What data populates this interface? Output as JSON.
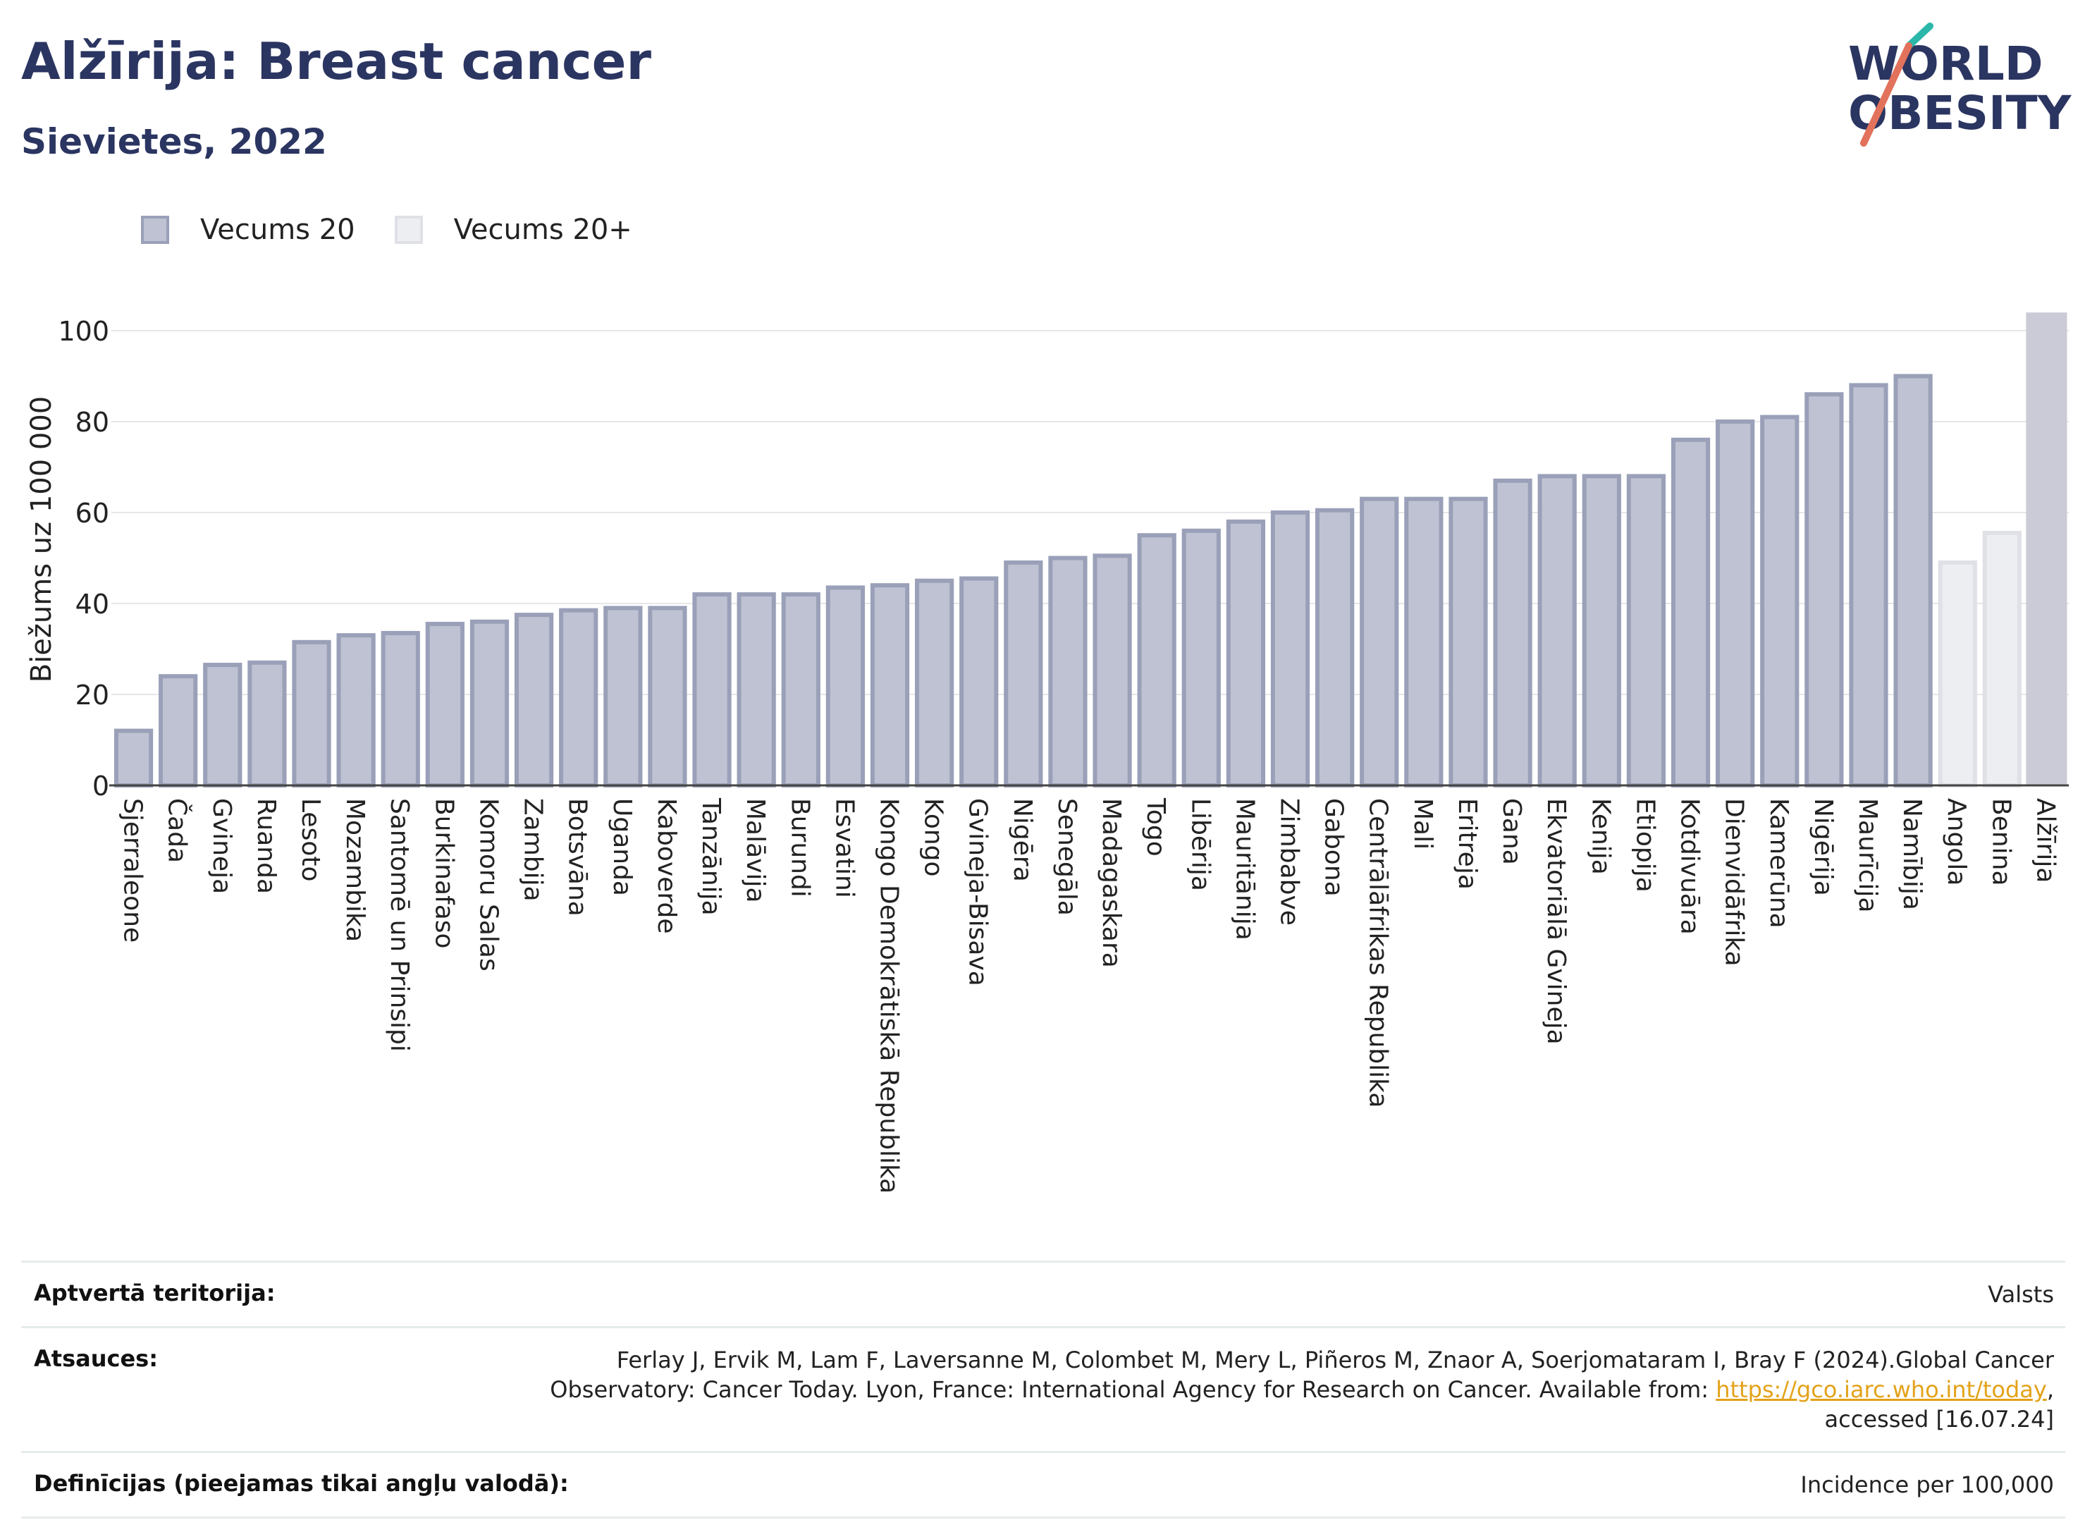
{
  "header": {
    "title": "Alžīrija: Breast cancer",
    "subtitle": "Sievietes, 2022"
  },
  "logo": {
    "line1": "WORLD",
    "line2": "OBESITY"
  },
  "legend": [
    {
      "label": "Vecums 20",
      "color": "#bfc2d2",
      "border": "#9aa0b8"
    },
    {
      "label": "Vecums 20+",
      "color": "#eceef2",
      "border": "#dfe1e7"
    }
  ],
  "chart_data": {
    "type": "bar",
    "ylabel": "Biežums uz 100 000",
    "xlabel": "",
    "ylim": [
      0,
      104
    ],
    "yticks": [
      0,
      20,
      40,
      60,
      80,
      100
    ],
    "grid": true,
    "categories": [
      "Sjerraleone",
      "Čada",
      "Gvineja",
      "Ruanda",
      "Lesoto",
      "Mozambika",
      "Santomē un Prinsipi",
      "Burkinafaso",
      "Komoru Salas",
      "Zambija",
      "Botsvāna",
      "Uganda",
      "Kaboverde",
      "Tanzānija",
      "Malāvija",
      "Burundi",
      "Esvatini",
      "Kongo Demokrātiskā Republika",
      "Kongo",
      "Gvineja-Bisava",
      "Nigēra",
      "Senegāla",
      "Madagaskara",
      "Togo",
      "Libērija",
      "Mauritānija",
      "Zimbabve",
      "Gabona",
      "Centrālāfrikas Republika",
      "Mali",
      "Eritreja",
      "Gana",
      "Ekvatoriālā Gvineja",
      "Kenija",
      "Etiopija",
      "Kotdivuāra",
      "Dienvidāfrika",
      "Kamerūna",
      "Nigērija",
      "Maurīcija",
      "Namībija",
      "Angola",
      "Benina",
      "Alžīrija"
    ],
    "values": [
      12,
      24,
      26.5,
      27,
      31.5,
      33,
      33.5,
      35.5,
      36,
      37.5,
      38.5,
      39,
      39,
      42,
      42,
      42,
      43.5,
      44,
      45,
      45.5,
      49,
      50,
      50.5,
      55,
      56,
      58,
      60,
      60.5,
      63,
      63,
      63,
      67,
      68,
      68,
      68,
      76,
      80,
      81,
      86,
      88,
      90,
      49,
      55.5,
      104
    ],
    "groups": [
      "Vecums 20",
      "Vecums 20",
      "Vecums 20",
      "Vecums 20",
      "Vecums 20",
      "Vecums 20",
      "Vecums 20",
      "Vecums 20",
      "Vecums 20",
      "Vecums 20",
      "Vecums 20",
      "Vecums 20",
      "Vecums 20",
      "Vecums 20",
      "Vecums 20",
      "Vecums 20",
      "Vecums 20",
      "Vecums 20",
      "Vecums 20",
      "Vecums 20",
      "Vecums 20",
      "Vecums 20",
      "Vecums 20",
      "Vecums 20",
      "Vecums 20",
      "Vecums 20",
      "Vecums 20",
      "Vecums 20",
      "Vecums 20",
      "Vecums 20",
      "Vecums 20",
      "Vecums 20",
      "Vecums 20",
      "Vecums 20",
      "Vecums 20",
      "Vecums 20",
      "Vecums 20",
      "Vecums 20",
      "Vecums 20",
      "Vecums 20",
      "Vecums 20",
      "Vecums 20+",
      "Vecums 20+",
      "highlight"
    ],
    "colors": {
      "Vecums 20": {
        "fill": "#bfc2d2",
        "stroke": "#9aa0b8"
      },
      "Vecums 20+": {
        "fill": "#eceef2",
        "stroke": "#dfe1e7"
      },
      "highlight": {
        "fill": "#cbcbd7",
        "stroke": "#cbcbd7"
      }
    }
  },
  "footer": {
    "rows": [
      {
        "label": "Aptvertā teritorija:",
        "value": "Valsts"
      },
      {
        "label": "Atsauces:",
        "value_line1": "Ferlay J, Ervik M, Lam F, Laversanne M, Colombet M, Mery L, Piñeros M, Znaor A, Soerjomataram I, Bray F (2024).Global Cancer",
        "value_line2_pre": "Observatory: Cancer Today. Lyon, France: International Agency for Research on Cancer. Available from: ",
        "value_link": "https://gco.iarc.who.int/today",
        "value_line2_post": ",",
        "value_line3": "accessed [16.07.24]"
      },
      {
        "label": "Definīcijas (pieejamas tikai angļu valodā):",
        "value": "Incidence per 100,000"
      }
    ]
  }
}
